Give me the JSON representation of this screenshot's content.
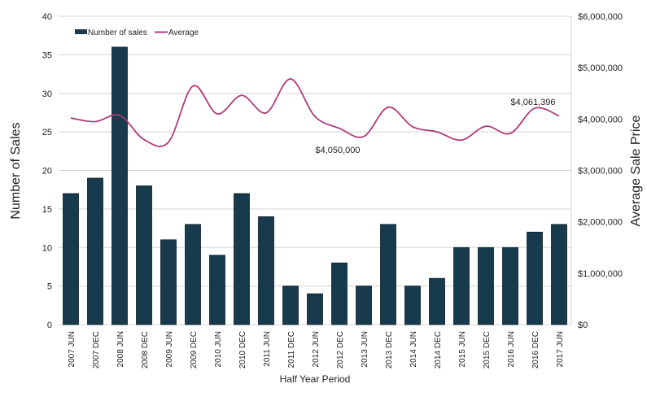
{
  "chart_data": {
    "type": "bar+line",
    "title": "",
    "xlabel": "Half Year Period",
    "ylabel": "Number of Sales",
    "ylabel_right": "Average Sale Price",
    "ylim": [
      0,
      40
    ],
    "ylim_right": [
      0,
      6000000
    ],
    "yticks": [
      "0",
      "5",
      "10",
      "15",
      "20",
      "25",
      "30",
      "35",
      "40"
    ],
    "yticks_right": [
      "$0",
      "$1,000,000",
      "$2,000,000",
      "$3,000,000",
      "$4,000,000",
      "$5,000,000",
      "$6,000,000"
    ],
    "grid": true,
    "legend_position": "top-left",
    "categories": [
      "2007 JUN",
      "2007 DEC",
      "2008 JUN",
      "2008 DEC",
      "2009 JUN",
      "2009 DEC",
      "2010 JUN",
      "2010 DEC",
      "2011 JUN",
      "2011 DEC",
      "2012 JUN",
      "2012 DEC",
      "2013 JUN",
      "2013 DEC",
      "2014 JUN",
      "2014 DEC",
      "2015 JUN",
      "2015 DEC",
      "2016 JUN",
      "2016 DEC",
      "2017 JUN"
    ],
    "series": [
      {
        "name": "Number of sales",
        "type": "bar",
        "axis": "left",
        "color": "#173b4d",
        "values": [
          17,
          19,
          36,
          18,
          11,
          13,
          9,
          17,
          14,
          5,
          4,
          8,
          5,
          13,
          5,
          6,
          10,
          10,
          10,
          12,
          13
        ]
      },
      {
        "name": "Average",
        "type": "line",
        "axis": "right",
        "color": "#b03a7a",
        "values": [
          4020000,
          3950000,
          4070000,
          3600000,
          3550000,
          4640000,
          4100000,
          4460000,
          4120000,
          4780000,
          4050000,
          3820000,
          3660000,
          4230000,
          3850000,
          3750000,
          3590000,
          3860000,
          3720000,
          4210000,
          4061396
        ]
      }
    ],
    "annotations": [
      {
        "text": "$4,050,000",
        "category": "2012 JUN"
      },
      {
        "text": "$4,061,396",
        "category": "2016 DEC"
      }
    ]
  }
}
